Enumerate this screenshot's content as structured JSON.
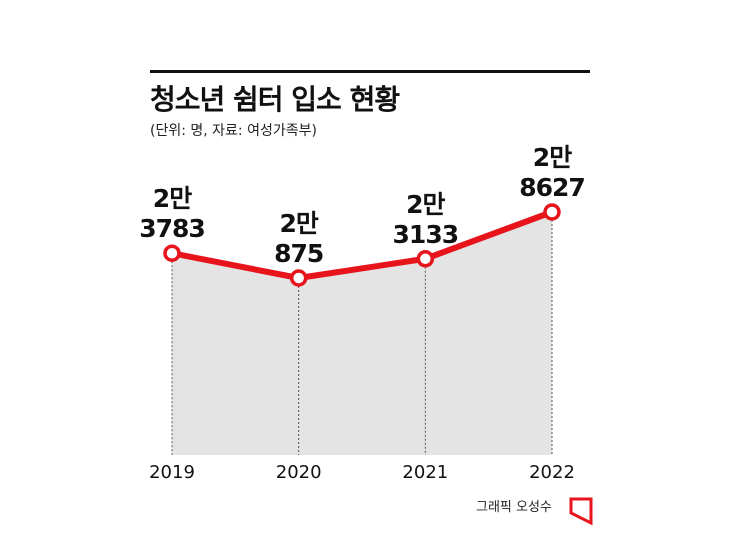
{
  "header": {
    "title": "청소년 쉼터 입소 현황",
    "subtitle": "(단위: 명, 자료: 여성가족부)"
  },
  "credit": "그래픽 오성수",
  "colors": {
    "line": "#e8141c",
    "area": "#e4e4e4",
    "text": "#111111",
    "rule": "#111111"
  },
  "chart_data": {
    "type": "area",
    "x": [
      "2019",
      "2020",
      "2021",
      "2022"
    ],
    "values": [
      23783,
      20875,
      23133,
      28627
    ],
    "labels": [
      [
        "2만",
        "3783"
      ],
      [
        "2만",
        "875"
      ],
      [
        "2만",
        "3133"
      ],
      [
        "2만",
        "8627"
      ]
    ],
    "unit": "명",
    "source": "여성가족부"
  }
}
